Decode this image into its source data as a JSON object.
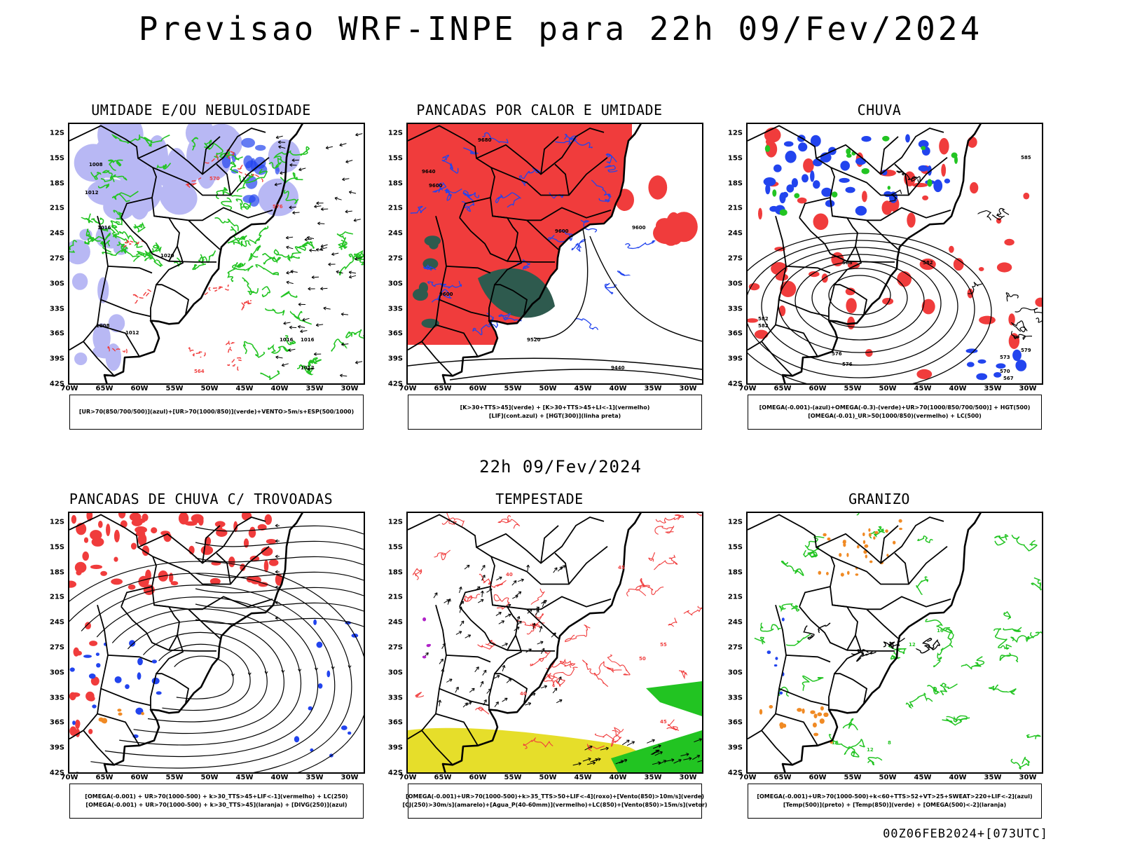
{
  "header": {
    "title": "Previsao WRF-INPE  para 22h 09/Fev/2024",
    "mid_title": "22h 09/Fev/2024",
    "footer": "00Z06FEB2024+[073UTC]"
  },
  "axes": {
    "lat_labels": [
      "12S",
      "15S",
      "18S",
      "21S",
      "24S",
      "27S",
      "30S",
      "33S",
      "36S",
      "39S",
      "42S"
    ],
    "lon_labels": [
      "70W",
      "65W",
      "60W",
      "55W",
      "50W",
      "45W",
      "40W",
      "35W",
      "30W"
    ]
  },
  "colors": {
    "red": "#f03c3c",
    "green": "#22c422",
    "blue": "#2244ee",
    "lavender": "#b8b8f4",
    "darkteal": "#2e5a4e",
    "yellow": "#e6de2a",
    "orange": "#f08a24"
  },
  "panels": [
    {
      "title": "UMIDADE E/OU NEBULOSIDADE",
      "legend": [
        "[UR>70(850/700/500)](azul)+[UR>70(1000/850)](verde)+VENTO>5m/s+ESP(500/1000)"
      ],
      "contour_labels": [
        "1008",
        "1012",
        "1016",
        "1020",
        "1008",
        "1012",
        "1016",
        "576",
        "570",
        "564",
        "1012",
        "1016"
      ]
    },
    {
      "title": "PANCADAS POR CALOR E UMIDADE",
      "legend": [
        "[K>30+TTS>45](verde) + [K>30+TTS>45+LI<-1](vermelho)",
        "[LIF](cont.azul) + [HGT(300)](linha preta)"
      ],
      "contour_labels": [
        "9680",
        "9640",
        "9600",
        "9600",
        "9600",
        "9520",
        "9440",
        "9600"
      ]
    },
    {
      "title": "CHUVA",
      "legend": [
        "[OMEGA(-0.001)-(azul)+OMEGA(-0.3)-(verde)+UR>70(1000/850/700/500)] + HGT(500)",
        "[OMEGA(-0.01)_UR>50(1000/850)(vermelho) + LC(500)"
      ],
      "contour_labels": [
        "585",
        "582",
        "582",
        "588",
        "579",
        "576",
        "576",
        "573",
        "570",
        "567",
        "582"
      ]
    },
    {
      "title": "PANCADAS DE CHUVA C/ TROVOADAS",
      "legend": [
        "[OMEGA(-0.001) + UR>70(1000-500) + k>30_TTS>45+LIF<-1](vermelho) + LC(250)",
        "[OMEGA(-0.001) + UR>70(1000-500) + k>30_TTS>45](laranja) + [DIVG(250)](azul)"
      ],
      "contour_labels": []
    },
    {
      "title": "TEMPESTADE",
      "legend": [
        "[OMEGA(-0.001)+UR>70(1000-500)+k>35_TTS>50+LIF<-4](roxo)+[Vento(850)>10m/s](verde)",
        "[CJ(250)>30m/s](amarelo)+[Agua_P(40-60mm)](vermelho)+LC(850)+[Vento(850)>15m/s](vetor)"
      ],
      "contour_labels": [
        "40",
        "45",
        "50",
        "55",
        "40",
        "45"
      ]
    },
    {
      "title": "GRANIZO",
      "legend": [
        "[OMEGA(-0.001)+UR>70(1000-500)+k<60+TTS>52+VT>25+SWEAT>220+LIF<-2](azul)",
        "[Temp(500)](preto) + [Temp(850)](verde) + [OMEGA(500)<-2](laranja)"
      ],
      "contour_labels": [
        "16",
        "12",
        "16",
        "12",
        "8"
      ]
    }
  ]
}
